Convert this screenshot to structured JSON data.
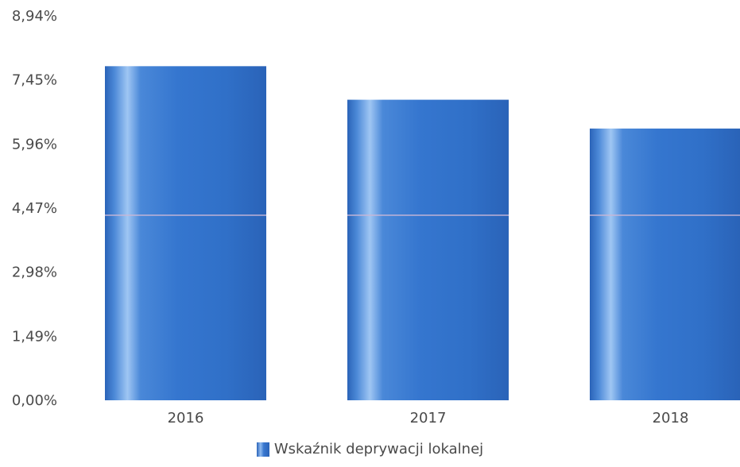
{
  "chart_data": {
    "type": "bar",
    "categories": [
      "2016",
      "2017",
      "2018"
    ],
    "series": [
      {
        "name": "Wskaźnik deprywacji lokalnej",
        "values": [
          7.77,
          6.99,
          6.32
        ],
        "color": "#3273cc"
      }
    ],
    "y_ticks": [
      "0,00%",
      "1,49%",
      "2,98%",
      "4,47%",
      "5,96%",
      "7,45%",
      "8,94%"
    ],
    "ylim": [
      0,
      8.94
    ],
    "grid": false,
    "legend_position": "bottom-center"
  }
}
